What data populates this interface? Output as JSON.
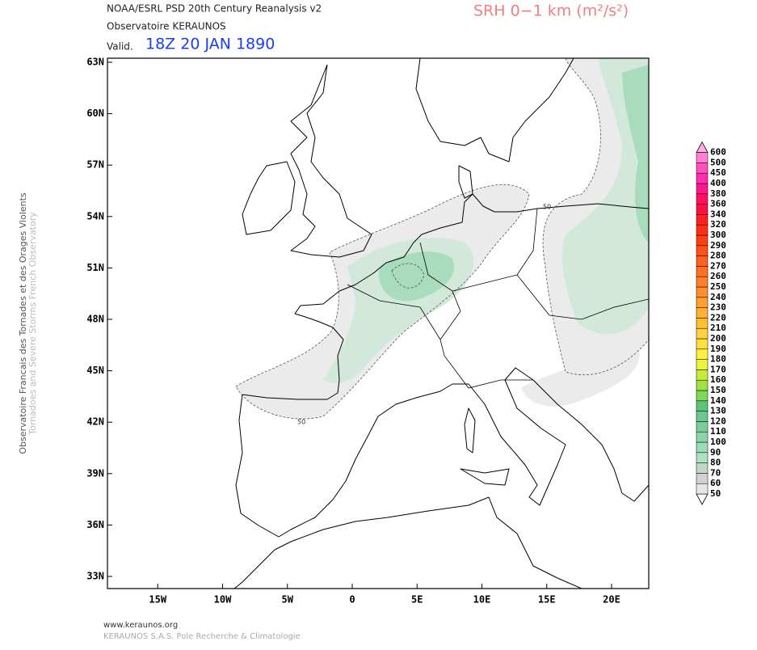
{
  "header": {
    "source": "NOAA/ESRL PSD 20th Century Reanalysis v2",
    "observatory": "Observatoire KERAUNOS",
    "valid_prefix": "Valid.",
    "valid_time": "18Z 20 JAN 1890",
    "title": "SRH 0−1 km (m²/s²)"
  },
  "side": {
    "french": "Observatoire Francais des Tornades et des Orages Violents",
    "english": "Tornadoes and Severe Storms French Observatory"
  },
  "map": {
    "lat_ticks": [
      {
        "value": 63,
        "label": "63N"
      },
      {
        "value": 60,
        "label": "60N"
      },
      {
        "value": 57,
        "label": "57N"
      },
      {
        "value": 54,
        "label": "54N"
      },
      {
        "value": 51,
        "label": "51N"
      },
      {
        "value": 48,
        "label": "48N"
      },
      {
        "value": 45,
        "label": "45N"
      },
      {
        "value": 42,
        "label": "42N"
      },
      {
        "value": 39,
        "label": "39N"
      },
      {
        "value": 36,
        "label": "36N"
      },
      {
        "value": 33,
        "label": "33N"
      }
    ],
    "lon_ticks": [
      {
        "value": -15,
        "label": "15W"
      },
      {
        "value": -10,
        "label": "10W"
      },
      {
        "value": -5,
        "label": "5W"
      },
      0,
      {
        "value": 5,
        "label": "5E"
      },
      {
        "value": 10,
        "label": "10E"
      },
      {
        "value": 15,
        "label": "15E"
      },
      {
        "value": 20,
        "label": "20E"
      }
    ],
    "contour_labels": [
      "50",
      "50"
    ]
  },
  "colorbar": {
    "levels": [
      50,
      60,
      70,
      80,
      90,
      100,
      110,
      120,
      130,
      140,
      150,
      160,
      170,
      180,
      190,
      200,
      210,
      220,
      230,
      240,
      250,
      260,
      270,
      280,
      290,
      300,
      320,
      340,
      360,
      380,
      400,
      450,
      500,
      600
    ],
    "colors": [
      "#e6e6e6",
      "#d2d2d2",
      "#c0d6c6",
      "#aee0c2",
      "#9cdcb6",
      "#8cd4aa",
      "#7ccc9c",
      "#6cc890",
      "#5cc47a",
      "#7ed85a",
      "#a0e040",
      "#c8ec3c",
      "#ecf43c",
      "#fff040",
      "#ffe040",
      "#ffd040",
      "#ffc030",
      "#ffb030",
      "#ffa030",
      "#ff9030",
      "#ff8028",
      "#ff7020",
      "#ff6020",
      "#ff5018",
      "#ff4010",
      "#ff3010",
      "#ff2020",
      "#ff1040",
      "#ff1060",
      "#ff1890",
      "#ff30b0",
      "#ff50c0",
      "#ff80d0",
      "#ffb0e0"
    ]
  },
  "footer": {
    "url": "www.keraunos.org",
    "company": "KERAUNOS S.A.S. Pole Recherche & Climatologie"
  }
}
